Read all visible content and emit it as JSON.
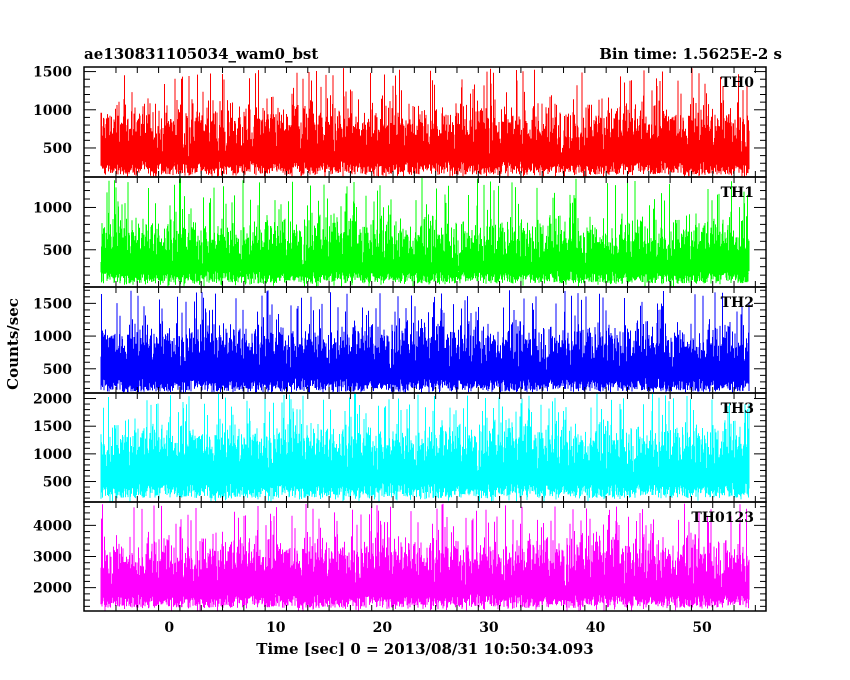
{
  "chart_data": {
    "type": "line",
    "title": "ae130831105034_wam0_bst",
    "subtitle": "Bin time: 1.5625E-2 s",
    "xlabel": "Time [sec] 0 = 2013/08/31 10:50:34.093",
    "ylabel": "Counts/sec",
    "xlim": [
      -8,
      56
    ],
    "x_ticks": [
      0,
      10,
      20,
      30,
      40,
      50
    ],
    "panels": [
      {
        "name": "TH0",
        "color": "#ff0000",
        "ylim": [
          120,
          1560
        ],
        "y_ticks": [
          500,
          1000,
          1500
        ],
        "baseline": 150,
        "typical_range": [
          250,
          1250
        ],
        "max": 1550
      },
      {
        "name": "TH1",
        "color": "#00ff00",
        "ylim": [
          60,
          1360
        ],
        "y_ticks": [
          500,
          1000
        ],
        "baseline": 100,
        "typical_range": [
          200,
          1000
        ],
        "max": 1350
      },
      {
        "name": "TH2",
        "color": "#0000ff",
        "ylim": [
          130,
          1750
        ],
        "y_ticks": [
          500,
          1000,
          1500
        ],
        "baseline": 150,
        "typical_range": [
          350,
          1350
        ],
        "max": 1700
      },
      {
        "name": "TH3",
        "color": "#00ffff",
        "ylim": [
          130,
          2100
        ],
        "y_ticks": [
          500,
          1000,
          1500,
          2000
        ],
        "baseline": 200,
        "typical_range": [
          500,
          1750
        ],
        "max": 2100
      },
      {
        "name": "TH0123",
        "color": "#ff00ff",
        "ylim": [
          1250,
          4750
        ],
        "y_ticks": [
          2000,
          3000,
          4000
        ],
        "baseline": 1350,
        "typical_range": [
          1700,
          4000
        ],
        "max": 4700
      }
    ]
  }
}
